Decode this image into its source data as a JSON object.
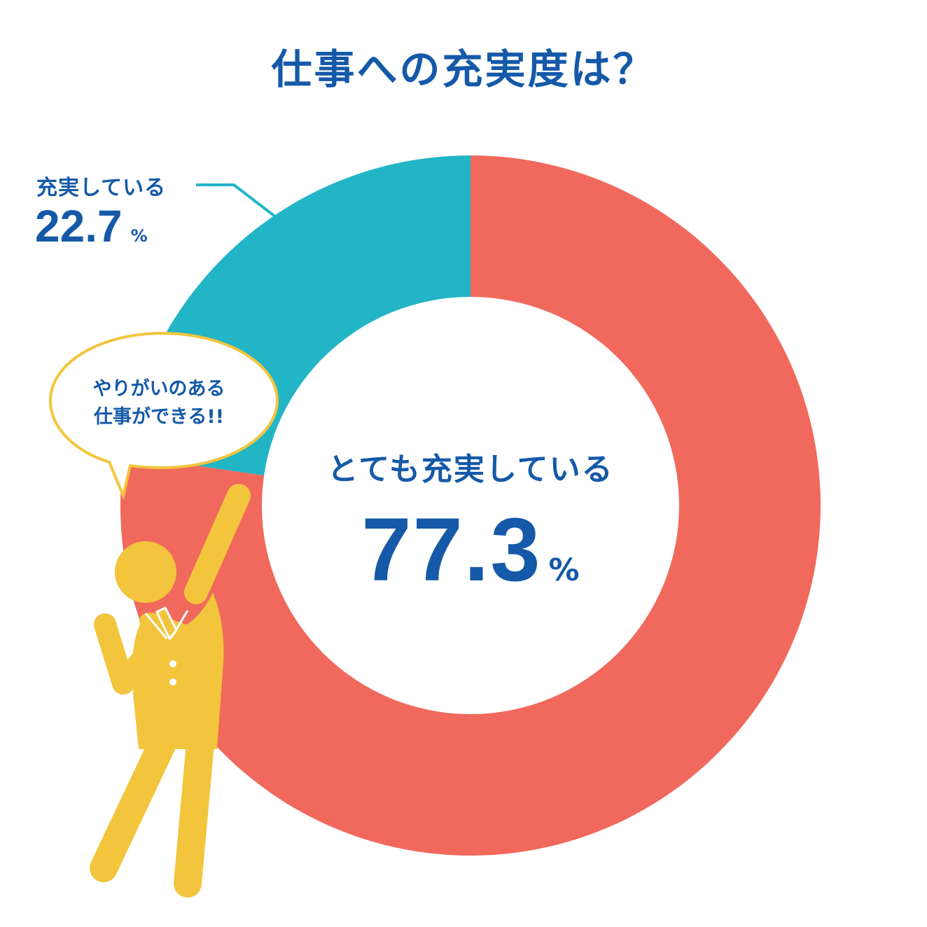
{
  "title": "仕事への充実度は？",
  "chart_data": {
    "type": "pie",
    "style": "donut",
    "slices": [
      {
        "label": "とても充実している",
        "value": 77.3,
        "color": "#f0695c"
      },
      {
        "label": "充実している",
        "value": 22.7,
        "color": "#22b5c6"
      }
    ],
    "unit": "%",
    "legend": "none"
  },
  "callout": {
    "label": "充実している",
    "value": "22.7",
    "unit": "%"
  },
  "center": {
    "label": "とても充実している",
    "value": "77.3",
    "unit": "%"
  },
  "speech_bubble": {
    "line1": "やりがいのある",
    "line2": "仕事ができる!!"
  },
  "colors": {
    "text_primary": "#1559a8",
    "slice_main": "#f0695c",
    "slice_minor": "#22b5c6",
    "figure": "#f2c53d"
  }
}
